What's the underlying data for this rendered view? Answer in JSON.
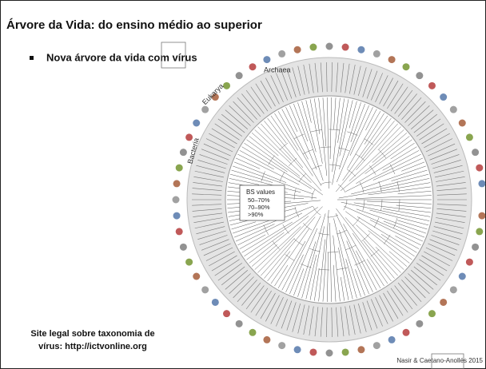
{
  "header": {
    "title": "Árvore da Vida: do ensino médio ao superior"
  },
  "bullets": [
    "Nova árvore da vida com vírus"
  ],
  "figure": {
    "labels": {
      "archaea": "Archaea",
      "eukarya": "Eukarya",
      "bacteria": "Bacteria"
    },
    "legend": {
      "title": "BS values",
      "items": [
        "50–70%",
        "70–90%",
        ">90%"
      ]
    }
  },
  "footnote": {
    "lines": [
      "Site legal sobre taxonomia de",
      "vírus: http://ictvonline.org"
    ]
  },
  "credit": "Nasir & Caetano-Anollés 2015"
}
